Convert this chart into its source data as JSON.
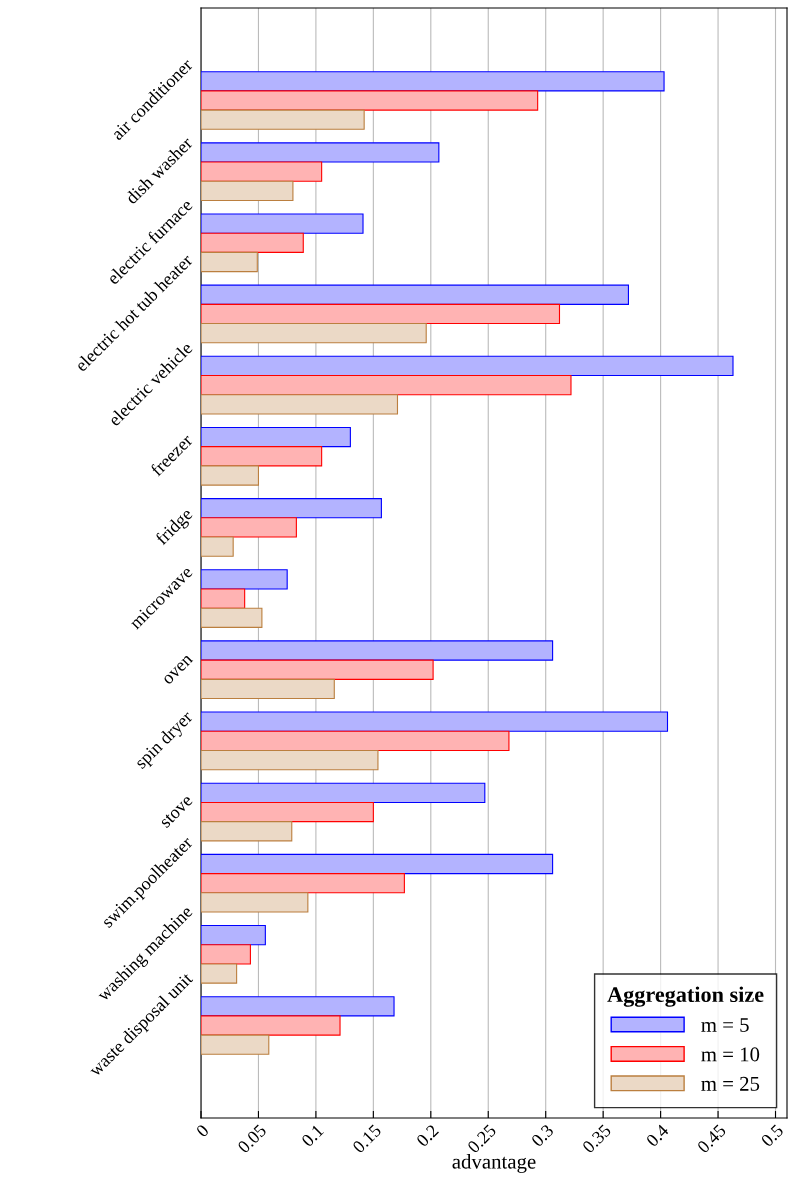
{
  "chart_data": {
    "type": "bar",
    "orientation": "horizontal",
    "xlabel": "advantage",
    "legend_title": "Aggregation size",
    "legend": "bottom right",
    "grid": "x",
    "categories": [
      "air conditioner",
      "dish washer",
      "electric furnace",
      "electric hot tub heater",
      "electric vehicle",
      "freezer",
      "fridge",
      "microwave",
      "oven",
      "spin dryer",
      "stove",
      "swim.poolheater",
      "washing machine",
      "waste disposal unit"
    ],
    "series": [
      {
        "name": "m = 5",
        "color": "#b3b3ff",
        "values": [
          0.403,
          0.207,
          0.141,
          0.372,
          0.463,
          0.13,
          0.157,
          0.075,
          0.306,
          0.406,
          0.247,
          0.306,
          0.056,
          0.168
        ]
      },
      {
        "name": "m = 10",
        "color": "#ffb3b3",
        "values": [
          0.293,
          0.105,
          0.089,
          0.312,
          0.322,
          0.105,
          0.083,
          0.038,
          0.202,
          0.268,
          0.15,
          0.177,
          0.043,
          0.121
        ]
      },
      {
        "name": "m = 25",
        "color": "#ebd9c6",
        "values": [
          0.142,
          0.08,
          0.049,
          0.196,
          0.171,
          0.05,
          0.028,
          0.053,
          0.116,
          0.154,
          0.079,
          0.093,
          0.031,
          0.059
        ]
      }
    ],
    "xlim": [
      0,
      0.51
    ],
    "xticks": [
      0,
      0.05,
      0.1,
      0.15,
      0.2,
      0.25,
      0.3,
      0.35,
      0.4,
      0.45,
      0.5
    ]
  }
}
